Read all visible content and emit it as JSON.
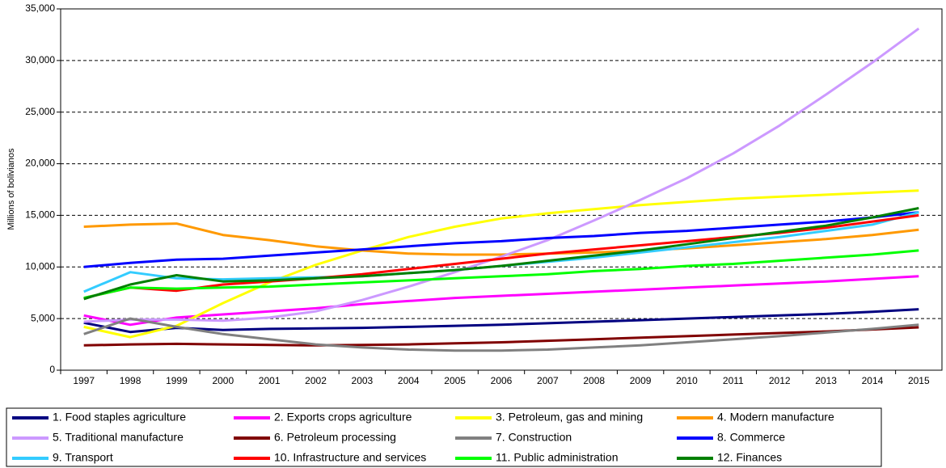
{
  "chart_data": {
    "type": "line",
    "y_label": "Millions of bolivianos",
    "categories": [
      "1997",
      "1998",
      "1999",
      "2000",
      "2001",
      "2002",
      "2003",
      "2004",
      "2005",
      "2006",
      "2007",
      "2008",
      "2009",
      "2010",
      "2011",
      "2012",
      "2013",
      "2014",
      "2015"
    ],
    "ylim": [
      0,
      35000
    ],
    "yticks": [
      0,
      {
        "value": 5000,
        "label": "5,000"
      },
      {
        "value": 10000,
        "label": "10,000"
      },
      {
        "value": 15000,
        "label": "15,000"
      },
      {
        "value": 20000,
        "label": "20,000"
      },
      {
        "value": 25000,
        "label": "25,000"
      },
      {
        "value": 30000,
        "label": "30,000"
      },
      {
        "value": 35000,
        "label": "35,000"
      }
    ],
    "grid": true,
    "series": [
      {
        "name": "1. Food staples agriculture",
        "color": "#000080",
        "values": [
          4600,
          3700,
          4100,
          3900,
          4000,
          4050,
          4100,
          4200,
          4300,
          4400,
          4550,
          4700,
          4850,
          5000,
          5150,
          5300,
          5450,
          5650,
          5900
        ]
      },
      {
        "name": "2. Exports crops agriculture",
        "color": "#ff00ff",
        "values": [
          5300,
          4400,
          5100,
          5400,
          5700,
          6000,
          6400,
          6700,
          7000,
          7200,
          7400,
          7600,
          7800,
          8000,
          8200,
          8400,
          8600,
          8850,
          9100
        ]
      },
      {
        "name": "3. Petroleum, gas and mining",
        "color": "#ffff00",
        "values": [
          4200,
          3200,
          4300,
          6500,
          8500,
          10200,
          11600,
          12900,
          13900,
          14700,
          15200,
          15600,
          16000,
          16300,
          16600,
          16800,
          17000,
          17200,
          17400
        ]
      },
      {
        "name": "4. Modern manufacture",
        "color": "#ff9900",
        "values": [
          13900,
          14100,
          14200,
          13100,
          12600,
          12000,
          11600,
          11300,
          11200,
          11200,
          11300,
          11400,
          11600,
          11800,
          12100,
          12400,
          12700,
          13100,
          13600
        ]
      },
      {
        "name": "5. Traditional manufacture",
        "color": "#cc99ff",
        "values": [
          4700,
          4900,
          4900,
          4800,
          5100,
          5700,
          6800,
          8100,
          9500,
          11000,
          12600,
          14500,
          16500,
          18600,
          21000,
          23700,
          26700,
          29800,
          33100
        ]
      },
      {
        "name": "6. Petroleum processing",
        "color": "#800000",
        "values": [
          2400,
          2500,
          2550,
          2500,
          2450,
          2400,
          2450,
          2500,
          2600,
          2700,
          2850,
          3000,
          3150,
          3300,
          3450,
          3600,
          3750,
          3950,
          4150
        ]
      },
      {
        "name": "7. Construction",
        "color": "#808080",
        "values": [
          3500,
          5000,
          4200,
          3500,
          3000,
          2500,
          2200,
          2000,
          1900,
          1900,
          2000,
          2200,
          2400,
          2700,
          3000,
          3300,
          3650,
          4000,
          4400
        ]
      },
      {
        "name": "8. Commerce",
        "color": "#0000ff",
        "values": [
          10000,
          10400,
          10700,
          10800,
          11100,
          11400,
          11700,
          12000,
          12300,
          12500,
          12800,
          13000,
          13300,
          13500,
          13800,
          14100,
          14400,
          14800,
          15300
        ]
      },
      {
        "name": "9. Transport",
        "color": "#33ccff",
        "values": [
          7600,
          9500,
          8900,
          8800,
          8900,
          9000,
          9100,
          9400,
          9700,
          10100,
          10500,
          10900,
          11400,
          11900,
          12400,
          12900,
          13500,
          14100,
          15300
        ]
      },
      {
        "name": "10. Infrastructure and services",
        "color": "#ff0000",
        "values": [
          7000,
          8000,
          7700,
          8300,
          8600,
          8900,
          9300,
          9800,
          10300,
          10800,
          11300,
          11700,
          12100,
          12500,
          12900,
          13300,
          13800,
          14400,
          15000
        ]
      },
      {
        "name": "11. Public administration",
        "color": "#00ff00",
        "values": [
          7000,
          8000,
          7900,
          8000,
          8100,
          8300,
          8500,
          8700,
          8900,
          9100,
          9300,
          9600,
          9800,
          10100,
          10300,
          10600,
          10900,
          11200,
          11600
        ]
      },
      {
        "name": "12. Finances",
        "color": "#008000",
        "values": [
          6900,
          8300,
          9200,
          8600,
          8700,
          8900,
          9100,
          9400,
          9700,
          10100,
          10600,
          11100,
          11600,
          12200,
          12800,
          13400,
          14000,
          14800,
          15700
        ]
      }
    ]
  }
}
